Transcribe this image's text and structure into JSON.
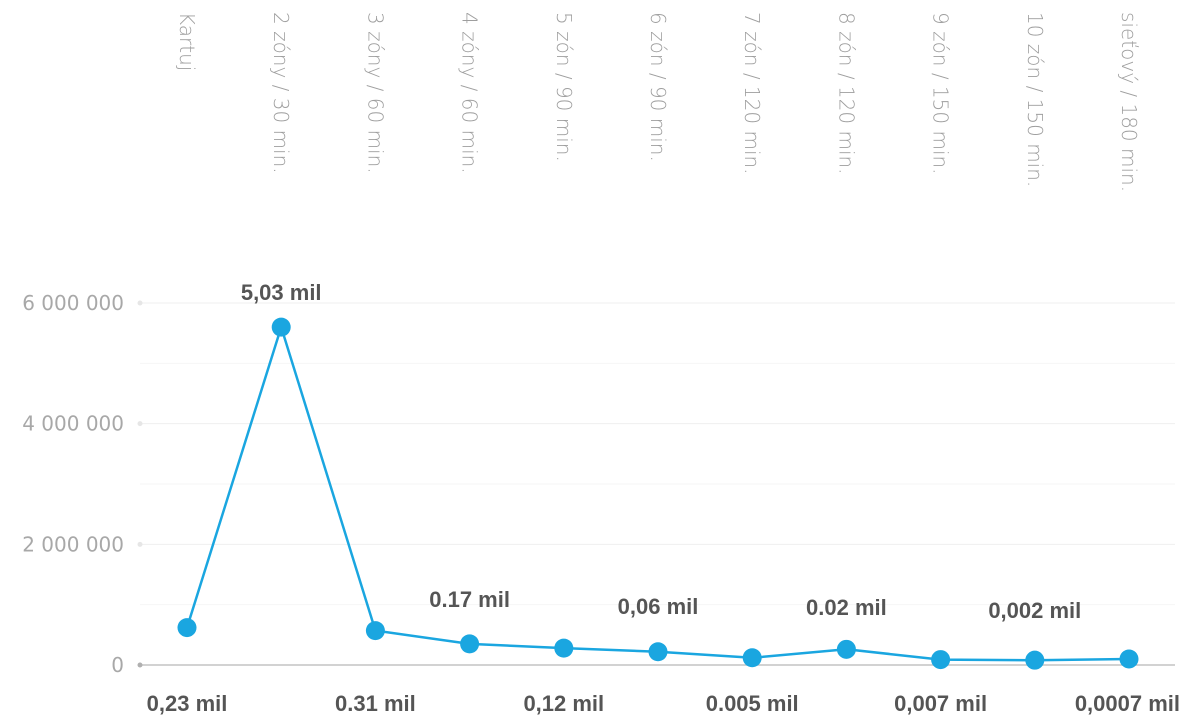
{
  "colors": {
    "line": "#1aa6e0",
    "grid": "#efefef",
    "text": "#555555",
    "muted": "#9e9e9e"
  },
  "chart_data": {
    "type": "line",
    "categories": [
      "Kartuj",
      "2 zóny / 30 min.",
      "3 zóny / 60 min.",
      "4 zóny / 60 min.",
      "5 zón / 90 min.",
      "6 zón / 90 min.",
      "7 zón / 120 min.",
      "8 zón / 120 min.",
      "9 zón / 150 min.",
      "10 zón / 150 min.",
      "sieťový / 180 min."
    ],
    "series": [
      {
        "values": [
          620000,
          5600000,
          570000,
          350000,
          280000,
          220000,
          120000,
          260000,
          90000,
          80000,
          100000
        ]
      }
    ],
    "ylim": [
      0,
      6000000
    ],
    "yticks": [
      0,
      2000000,
      4000000,
      6000000
    ],
    "ytick_labels": [
      "0",
      "2 000 000",
      "4 000 000",
      "6 000 000"
    ],
    "grid": true,
    "annotations_top": [
      {
        "index": 1,
        "text": "5,03 mil"
      },
      {
        "index": 3,
        "text": "0.17 mil"
      },
      {
        "index": 5,
        "text": "0,06 mil"
      },
      {
        "index": 7,
        "text": "0.02 mil"
      },
      {
        "index": 9,
        "text": "0,002 mil"
      }
    ],
    "annotations_bottom": [
      {
        "index": 0,
        "text": "0,23 mil"
      },
      {
        "index": 2,
        "text": "0.31 mil"
      },
      {
        "index": 4,
        "text": "0,12 mil"
      },
      {
        "index": 6,
        "text": "0.005 mil"
      },
      {
        "index": 8,
        "text": "0,007 mil"
      },
      {
        "index": 10,
        "text": "0,0007 mil"
      }
    ]
  }
}
